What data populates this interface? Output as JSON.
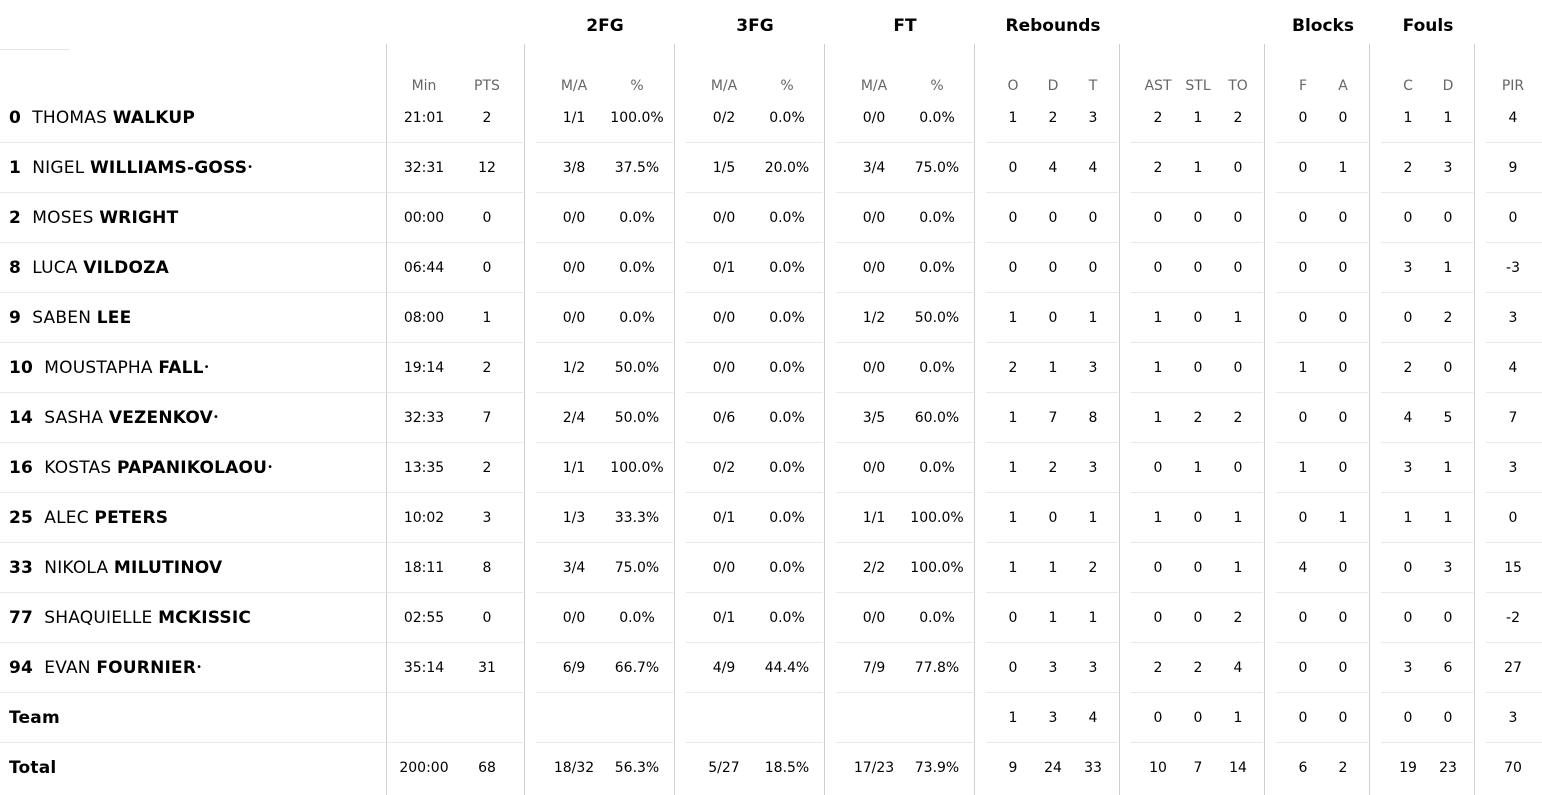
{
  "groups": {
    "fg2": "2FG",
    "fg3": "3FG",
    "ft": "FT",
    "reb": "Rebounds",
    "blk": "Blocks",
    "fouls": "Fouls"
  },
  "sub": {
    "min": "Min",
    "pts": "PTS",
    "fg2_ma": "M/A",
    "fg2_pct": "%",
    "fg3_ma": "M/A",
    "fg3_pct": "%",
    "ft_ma": "M/A",
    "ft_pct": "%",
    "o": "O",
    "d": "D",
    "t": "T",
    "ast": "AST",
    "stl": "STL",
    "to": "TO",
    "bf": "F",
    "ba": "A",
    "fc": "C",
    "fd": "D",
    "pir": "PIR"
  },
  "rows": [
    {
      "num": "0",
      "first": "THOMAS",
      "last": "WALKUP",
      "star": "",
      "min": "21:01",
      "pts": "2",
      "fg2_ma": "1/1",
      "fg2_pct": "100.0%",
      "fg3_ma": "0/2",
      "fg3_pct": "0.0%",
      "ft_ma": "0/0",
      "ft_pct": "0.0%",
      "o": "1",
      "d": "2",
      "t": "3",
      "ast": "2",
      "stl": "1",
      "to": "2",
      "bf": "0",
      "ba": "0",
      "fc": "1",
      "fd": "1",
      "pir": "4"
    },
    {
      "num": "1",
      "first": "NIGEL",
      "last": "WILLIAMS-GOSS",
      "star": "•",
      "min": "32:31",
      "pts": "12",
      "fg2_ma": "3/8",
      "fg2_pct": "37.5%",
      "fg3_ma": "1/5",
      "fg3_pct": "20.0%",
      "ft_ma": "3/4",
      "ft_pct": "75.0%",
      "o": "0",
      "d": "4",
      "t": "4",
      "ast": "2",
      "stl": "1",
      "to": "0",
      "bf": "0",
      "ba": "1",
      "fc": "2",
      "fd": "3",
      "pir": "9"
    },
    {
      "num": "2",
      "first": "MOSES",
      "last": "WRIGHT",
      "star": "",
      "min": "00:00",
      "pts": "0",
      "fg2_ma": "0/0",
      "fg2_pct": "0.0%",
      "fg3_ma": "0/0",
      "fg3_pct": "0.0%",
      "ft_ma": "0/0",
      "ft_pct": "0.0%",
      "o": "0",
      "d": "0",
      "t": "0",
      "ast": "0",
      "stl": "0",
      "to": "0",
      "bf": "0",
      "ba": "0",
      "fc": "0",
      "fd": "0",
      "pir": "0"
    },
    {
      "num": "8",
      "first": "LUCA",
      "last": "VILDOZA",
      "star": "",
      "min": "06:44",
      "pts": "0",
      "fg2_ma": "0/0",
      "fg2_pct": "0.0%",
      "fg3_ma": "0/1",
      "fg3_pct": "0.0%",
      "ft_ma": "0/0",
      "ft_pct": "0.0%",
      "o": "0",
      "d": "0",
      "t": "0",
      "ast": "0",
      "stl": "0",
      "to": "0",
      "bf": "0",
      "ba": "0",
      "fc": "3",
      "fd": "1",
      "pir": "-3"
    },
    {
      "num": "9",
      "first": "SABEN",
      "last": "LEE",
      "star": "",
      "min": "08:00",
      "pts": "1",
      "fg2_ma": "0/0",
      "fg2_pct": "0.0%",
      "fg3_ma": "0/0",
      "fg3_pct": "0.0%",
      "ft_ma": "1/2",
      "ft_pct": "50.0%",
      "o": "1",
      "d": "0",
      "t": "1",
      "ast": "1",
      "stl": "0",
      "to": "1",
      "bf": "0",
      "ba": "0",
      "fc": "0",
      "fd": "2",
      "pir": "3"
    },
    {
      "num": "10",
      "first": "MOUSTAPHA",
      "last": "FALL",
      "star": "•",
      "min": "19:14",
      "pts": "2",
      "fg2_ma": "1/2",
      "fg2_pct": "50.0%",
      "fg3_ma": "0/0",
      "fg3_pct": "0.0%",
      "ft_ma": "0/0",
      "ft_pct": "0.0%",
      "o": "2",
      "d": "1",
      "t": "3",
      "ast": "1",
      "stl": "0",
      "to": "0",
      "bf": "1",
      "ba": "0",
      "fc": "2",
      "fd": "0",
      "pir": "4"
    },
    {
      "num": "14",
      "first": "SASHA",
      "last": "VEZENKOV",
      "star": "•",
      "min": "32:33",
      "pts": "7",
      "fg2_ma": "2/4",
      "fg2_pct": "50.0%",
      "fg3_ma": "0/6",
      "fg3_pct": "0.0%",
      "ft_ma": "3/5",
      "ft_pct": "60.0%",
      "o": "1",
      "d": "7",
      "t": "8",
      "ast": "1",
      "stl": "2",
      "to": "2",
      "bf": "0",
      "ba": "0",
      "fc": "4",
      "fd": "5",
      "pir": "7"
    },
    {
      "num": "16",
      "first": "KOSTAS",
      "last": "PAPANIKOLAOU",
      "star": "•",
      "min": "13:35",
      "pts": "2",
      "fg2_ma": "1/1",
      "fg2_pct": "100.0%",
      "fg3_ma": "0/2",
      "fg3_pct": "0.0%",
      "ft_ma": "0/0",
      "ft_pct": "0.0%",
      "o": "1",
      "d": "2",
      "t": "3",
      "ast": "0",
      "stl": "1",
      "to": "0",
      "bf": "1",
      "ba": "0",
      "fc": "3",
      "fd": "1",
      "pir": "3"
    },
    {
      "num": "25",
      "first": "ALEC",
      "last": "PETERS",
      "star": "",
      "min": "10:02",
      "pts": "3",
      "fg2_ma": "1/3",
      "fg2_pct": "33.3%",
      "fg3_ma": "0/1",
      "fg3_pct": "0.0%",
      "ft_ma": "1/1",
      "ft_pct": "100.0%",
      "o": "1",
      "d": "0",
      "t": "1",
      "ast": "1",
      "stl": "0",
      "to": "1",
      "bf": "0",
      "ba": "1",
      "fc": "1",
      "fd": "1",
      "pir": "0"
    },
    {
      "num": "33",
      "first": "NIKOLA",
      "last": "MILUTINOV",
      "star": "",
      "min": "18:11",
      "pts": "8",
      "fg2_ma": "3/4",
      "fg2_pct": "75.0%",
      "fg3_ma": "0/0",
      "fg3_pct": "0.0%",
      "ft_ma": "2/2",
      "ft_pct": "100.0%",
      "o": "1",
      "d": "1",
      "t": "2",
      "ast": "0",
      "stl": "0",
      "to": "1",
      "bf": "4",
      "ba": "0",
      "fc": "0",
      "fd": "3",
      "pir": "15"
    },
    {
      "num": "77",
      "first": "SHAQUIELLE",
      "last": "MCKISSIC",
      "star": "",
      "min": "02:55",
      "pts": "0",
      "fg2_ma": "0/0",
      "fg2_pct": "0.0%",
      "fg3_ma": "0/1",
      "fg3_pct": "0.0%",
      "ft_ma": "0/0",
      "ft_pct": "0.0%",
      "o": "0",
      "d": "1",
      "t": "1",
      "ast": "0",
      "stl": "0",
      "to": "2",
      "bf": "0",
      "ba": "0",
      "fc": "0",
      "fd": "0",
      "pir": "-2"
    },
    {
      "num": "94",
      "first": "EVAN",
      "last": "FOURNIER",
      "star": "•",
      "min": "35:14",
      "pts": "31",
      "fg2_ma": "6/9",
      "fg2_pct": "66.7%",
      "fg3_ma": "4/9",
      "fg3_pct": "44.4%",
      "ft_ma": "7/9",
      "ft_pct": "77.8%",
      "o": "0",
      "d": "3",
      "t": "3",
      "ast": "2",
      "stl": "2",
      "to": "4",
      "bf": "0",
      "ba": "0",
      "fc": "3",
      "fd": "6",
      "pir": "27"
    }
  ],
  "team": {
    "label": "Team",
    "o": "1",
    "d": "3",
    "t": "4",
    "ast": "0",
    "stl": "0",
    "to": "1",
    "bf": "0",
    "ba": "0",
    "fc": "0",
    "fd": "0",
    "pir": "3"
  },
  "total": {
    "label": "Total",
    "min": "200:00",
    "pts": "68",
    "fg2_ma": "18/32",
    "fg2_pct": "56.3%",
    "fg3_ma": "5/27",
    "fg3_pct": "18.5%",
    "ft_ma": "17/23",
    "ft_pct": "73.9%",
    "o": "9",
    "d": "24",
    "t": "33",
    "ast": "10",
    "stl": "7",
    "to": "14",
    "bf": "6",
    "ba": "2",
    "fc": "19",
    "fd": "23",
    "pir": "70"
  }
}
